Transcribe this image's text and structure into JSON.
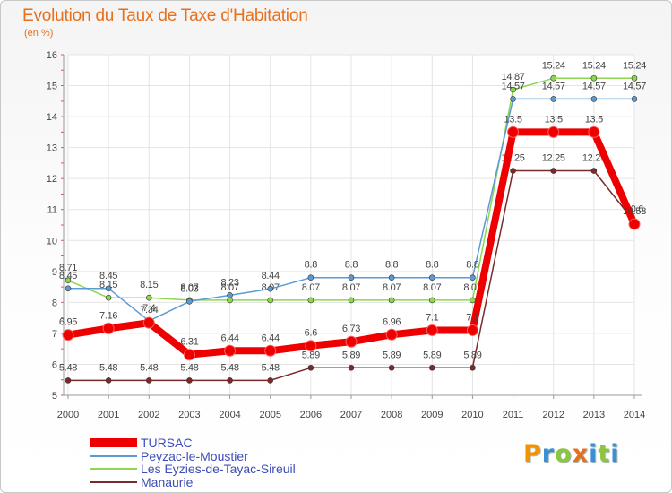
{
  "header": {
    "title": "Evolution du Taux de Taxe d'Habitation",
    "subtitle": "(en %)"
  },
  "logo": {
    "letters": [
      "P",
      "r",
      "o",
      "x",
      "i",
      "t",
      "i"
    ],
    "colors": [
      "#f29400",
      "#3a8fd6",
      "#8cc63f",
      "#e8701c",
      "#3a8fd6",
      "#8cc63f",
      "#3a8fd6"
    ]
  },
  "chart_data": {
    "type": "line",
    "title": "Evolution du Taux de Taxe d'Habitation",
    "subtitle": "(en %)",
    "xlabel": "",
    "ylabel": "",
    "x": [
      "2000",
      "2001",
      "2002",
      "2003",
      "2004",
      "2005",
      "2006",
      "2007",
      "2008",
      "2009",
      "2010",
      "2011",
      "2012",
      "2013",
      "2014"
    ],
    "ylim": [
      5,
      16
    ],
    "yticks": [
      "5",
      "6",
      "7",
      "8",
      "9",
      "10",
      "11",
      "12",
      "13",
      "14",
      "15",
      "16"
    ],
    "grid": true,
    "legend_position": "bottom-left",
    "series": [
      {
        "name": "TURSAC",
        "color": "#ee0000",
        "emphasis": true,
        "values": [
          6.95,
          7.16,
          7.34,
          6.31,
          6.44,
          6.44,
          6.6,
          6.73,
          6.96,
          7.1,
          7.1,
          13.5,
          13.5,
          13.5,
          10.53
        ],
        "labels": [
          "6.95",
          "7.16",
          "7.34",
          "6.31",
          "6.44",
          "6.44",
          "6.6",
          "6.73",
          "6.96",
          "7.1",
          "7.1",
          "13.5",
          "13.5",
          "13.5",
          "10.53"
        ]
      },
      {
        "name": "Peyzac-le-Moustier",
        "color": "#5b9bd5",
        "values": [
          8.45,
          8.45,
          7.4,
          8.03,
          8.23,
          8.44,
          8.8,
          8.8,
          8.8,
          8.8,
          8.8,
          14.57,
          14.57,
          14.57,
          14.57
        ],
        "labels": [
          "8.45",
          "8.45",
          "7.4",
          "8.03",
          "8.23",
          "8.44",
          "8.8",
          "8.8",
          "8.8",
          "8.8",
          "8.8",
          "14.57",
          "14.57",
          "14.57",
          "14.57"
        ]
      },
      {
        "name": "Les Eyzies-de-Tayac-Sireuil",
        "color": "#8fd650",
        "values": [
          8.71,
          8.15,
          8.15,
          8.07,
          8.07,
          8.07,
          8.07,
          8.07,
          8.07,
          8.07,
          8.07,
          14.87,
          15.24,
          15.24,
          15.24
        ],
        "labels": [
          "8.71",
          "8.15",
          "8.15",
          "8.07",
          "8.07",
          "8.07",
          "8.07",
          "8.07",
          "8.07",
          "8.07",
          "8.07",
          "14.87",
          "15.24",
          "15.24",
          "15.24"
        ]
      },
      {
        "name": "Manaurie",
        "color": "#7a2a2a",
        "values": [
          5.48,
          5.48,
          5.48,
          5.48,
          5.48,
          5.48,
          5.89,
          5.89,
          5.89,
          5.89,
          5.89,
          12.25,
          12.25,
          12.25,
          10.6
        ],
        "labels": [
          "5.48",
          "5.48",
          "5.48",
          "5.48",
          "5.48",
          "5.48",
          "5.89",
          "5.89",
          "5.89",
          "5.89",
          "5.89",
          "12.25",
          "12.25",
          "12.25",
          "10.6"
        ]
      }
    ]
  }
}
